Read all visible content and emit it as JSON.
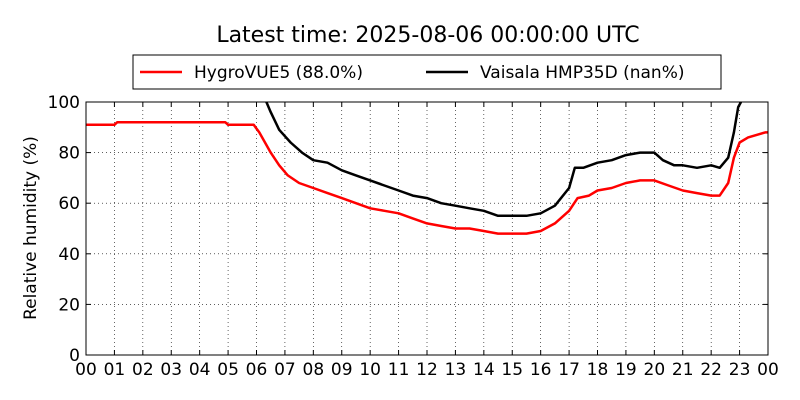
{
  "chart_data": {
    "type": "line",
    "title": "Latest time: 2025-08-06 00:00:00 UTC",
    "xlabel": "",
    "ylabel": "Relative humidity (%)",
    "xlim": [
      0,
      24
    ],
    "ylim": [
      0,
      100
    ],
    "grid": true,
    "legend_position": "top",
    "x_ticks": [
      0,
      1,
      2,
      3,
      4,
      5,
      6,
      7,
      8,
      9,
      10,
      11,
      12,
      13,
      14,
      15,
      16,
      17,
      18,
      19,
      20,
      21,
      22,
      23,
      24
    ],
    "x_tick_labels": [
      "00",
      "01",
      "02",
      "03",
      "04",
      "05",
      "06",
      "07",
      "08",
      "09",
      "10",
      "11",
      "12",
      "13",
      "14",
      "15",
      "16",
      "17",
      "18",
      "19",
      "20",
      "21",
      "22",
      "23",
      "00"
    ],
    "y_ticks": [
      0,
      20,
      40,
      60,
      80,
      100
    ],
    "y_tick_labels": [
      "0",
      "20",
      "40",
      "60",
      "80",
      "100"
    ],
    "series": [
      {
        "name": "HygroVUE5 (88.0%)",
        "color": "#ff0000",
        "points": [
          [
            0,
            91
          ],
          [
            1,
            91
          ],
          [
            1.1,
            92
          ],
          [
            2,
            92
          ],
          [
            3,
            92
          ],
          [
            4,
            92
          ],
          [
            4.9,
            92
          ],
          [
            5,
            91
          ],
          [
            5.9,
            91
          ],
          [
            6.1,
            88
          ],
          [
            6.3,
            84
          ],
          [
            6.5,
            80
          ],
          [
            6.8,
            75
          ],
          [
            7.1,
            71
          ],
          [
            7.5,
            68
          ],
          [
            8,
            66
          ],
          [
            8.5,
            64
          ],
          [
            9,
            62
          ],
          [
            9.5,
            60
          ],
          [
            10,
            58
          ],
          [
            10.5,
            57
          ],
          [
            11,
            56
          ],
          [
            11.5,
            54
          ],
          [
            12,
            52
          ],
          [
            12.5,
            51
          ],
          [
            13,
            50
          ],
          [
            13.5,
            50
          ],
          [
            14,
            49
          ],
          [
            14.5,
            48
          ],
          [
            15,
            48
          ],
          [
            15.5,
            48
          ],
          [
            16,
            49
          ],
          [
            16.5,
            52
          ],
          [
            17,
            57
          ],
          [
            17.3,
            62
          ],
          [
            17.7,
            63
          ],
          [
            18,
            65
          ],
          [
            18.5,
            66
          ],
          [
            19,
            68
          ],
          [
            19.5,
            69
          ],
          [
            20,
            69
          ],
          [
            20.5,
            67
          ],
          [
            21,
            65
          ],
          [
            21.5,
            64
          ],
          [
            22,
            63
          ],
          [
            22.3,
            63
          ],
          [
            22.6,
            68
          ],
          [
            22.8,
            78
          ],
          [
            23,
            84
          ],
          [
            23.3,
            86
          ],
          [
            23.6,
            87
          ],
          [
            23.9,
            88
          ],
          [
            24,
            88
          ]
        ]
      },
      {
        "name": "Vaisala HMP35D (nan%)",
        "color": "#000000",
        "points": [
          [
            6.35,
            100
          ],
          [
            6.5,
            96
          ],
          [
            6.8,
            89
          ],
          [
            7.2,
            84
          ],
          [
            7.6,
            80
          ],
          [
            8,
            77
          ],
          [
            8.5,
            76
          ],
          [
            9,
            73
          ],
          [
            9.5,
            71
          ],
          [
            10,
            69
          ],
          [
            10.5,
            67
          ],
          [
            11,
            65
          ],
          [
            11.5,
            63
          ],
          [
            12,
            62
          ],
          [
            12.5,
            60
          ],
          [
            13,
            59
          ],
          [
            13.5,
            58
          ],
          [
            14,
            57
          ],
          [
            14.5,
            55
          ],
          [
            15,
            55
          ],
          [
            15.5,
            55
          ],
          [
            16,
            56
          ],
          [
            16.5,
            59
          ],
          [
            17,
            66
          ],
          [
            17.2,
            74
          ],
          [
            17.5,
            74
          ],
          [
            18,
            76
          ],
          [
            18.5,
            77
          ],
          [
            19,
            79
          ],
          [
            19.5,
            80
          ],
          [
            20,
            80
          ],
          [
            20.3,
            77
          ],
          [
            20.7,
            75
          ],
          [
            21,
            75
          ],
          [
            21.5,
            74
          ],
          [
            22,
            75
          ],
          [
            22.3,
            74
          ],
          [
            22.6,
            78
          ],
          [
            22.8,
            88
          ],
          [
            22.95,
            98
          ],
          [
            23.05,
            100
          ]
        ]
      }
    ]
  }
}
